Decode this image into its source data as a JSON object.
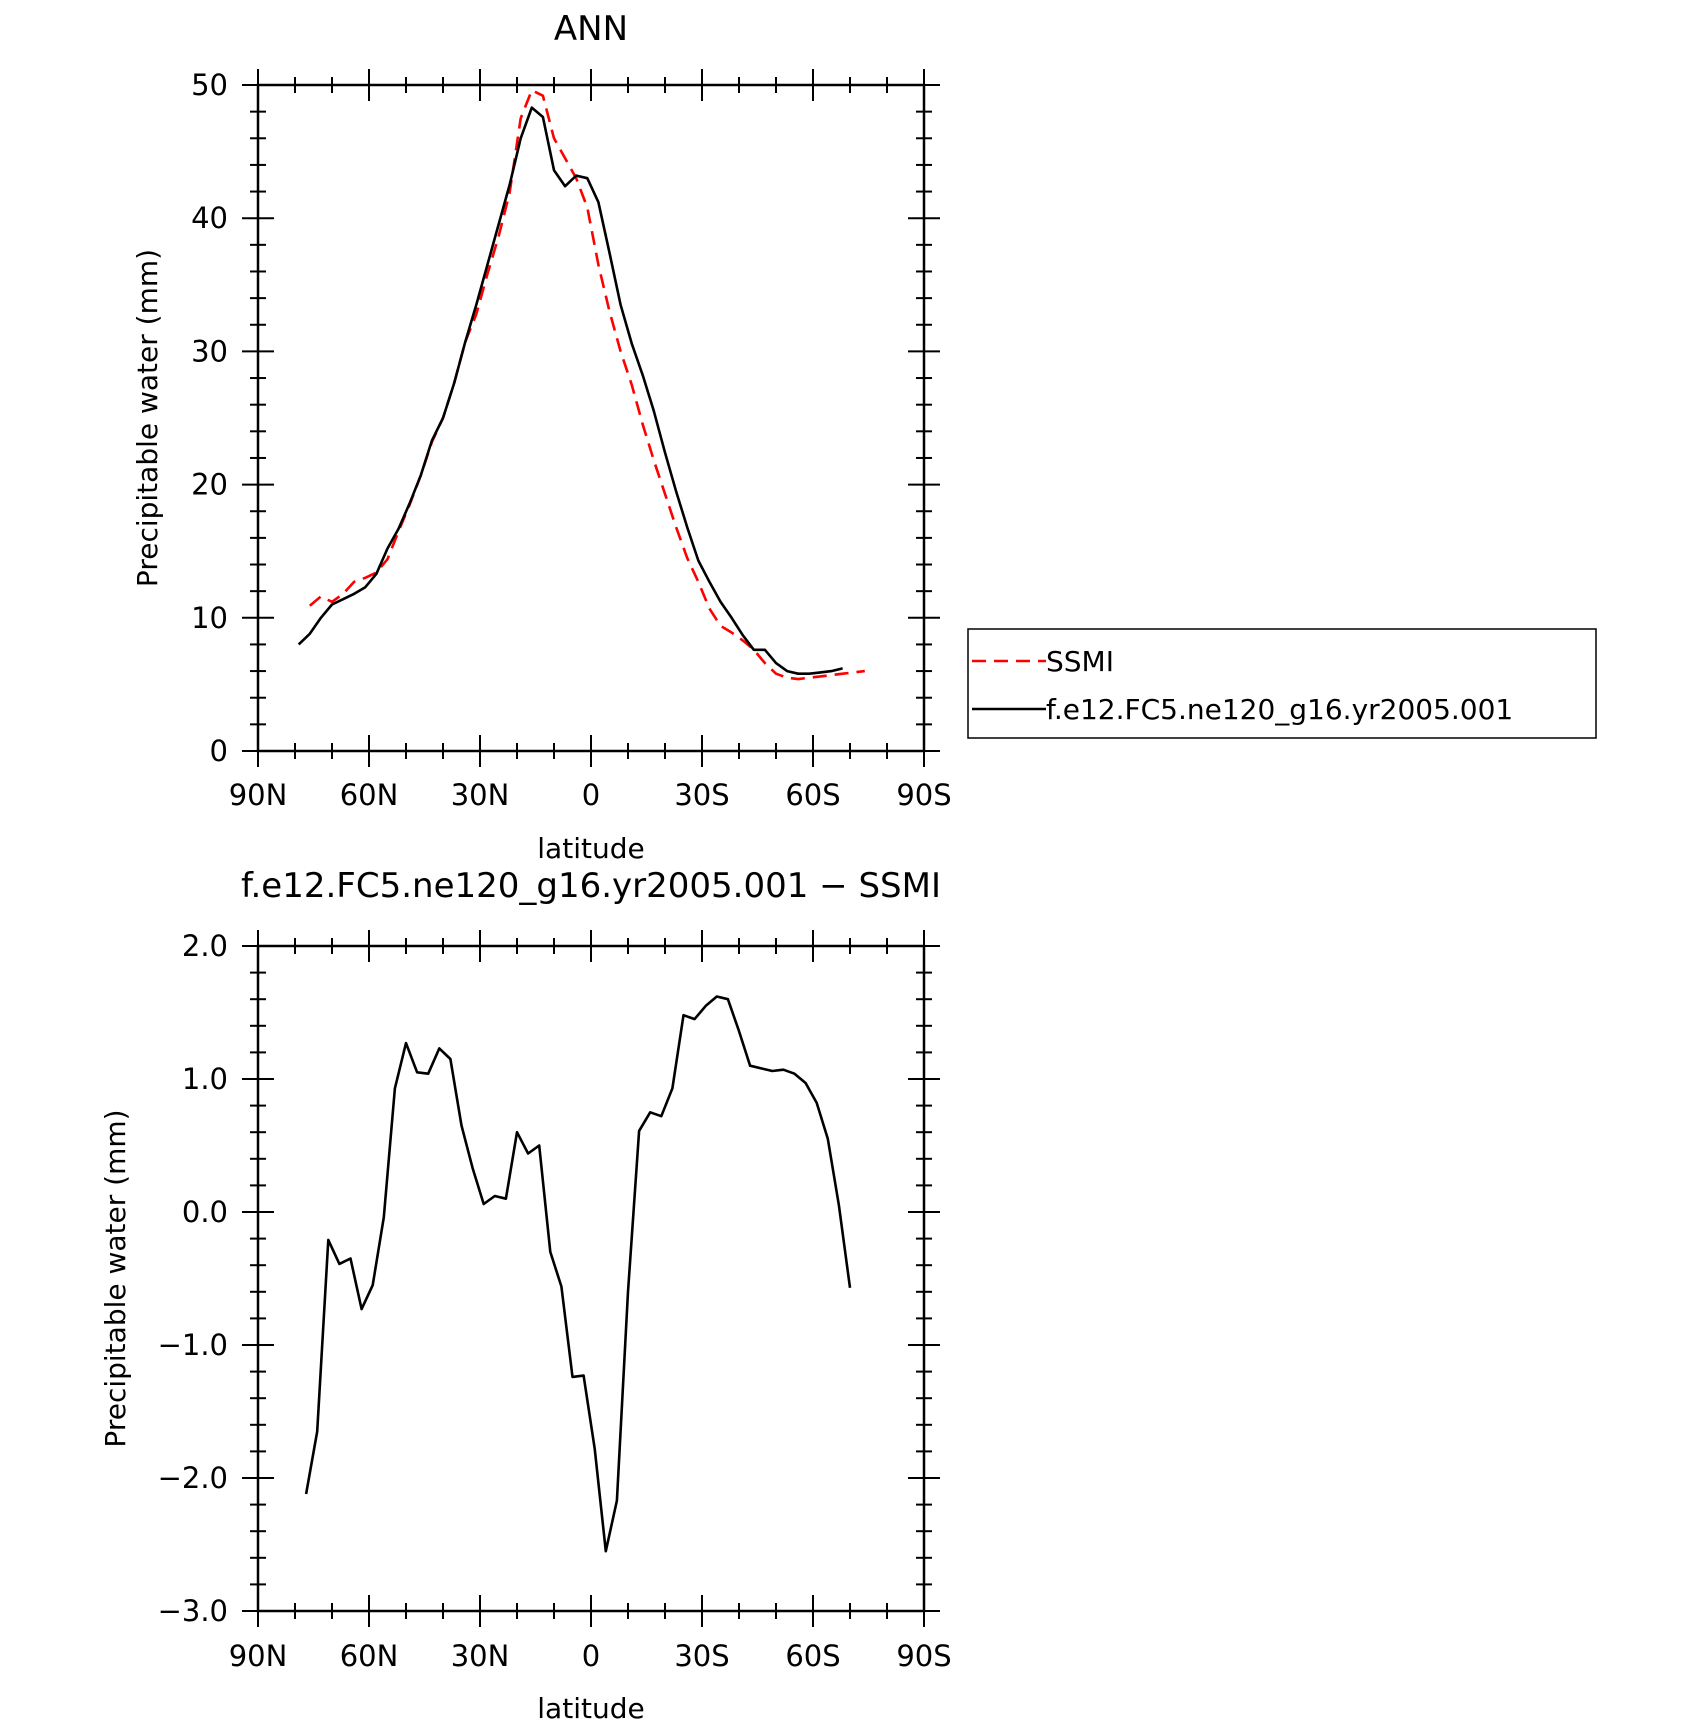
{
  "chart_data": [
    {
      "type": "line",
      "title": "ANN",
      "xlabel": "latitude",
      "ylabel": "Precipitable water (mm)",
      "xlim": [
        90,
        -90
      ],
      "ylim": [
        0,
        50
      ],
      "x_ticks": [
        90,
        60,
        30,
        0,
        -30,
        -60,
        -90
      ],
      "x_tick_labels": [
        "90N",
        "60N",
        "30N",
        "0",
        "30S",
        "60S",
        "90S"
      ],
      "y_ticks": [
        0,
        10,
        20,
        30,
        40,
        50
      ],
      "y_tick_labels": [
        "0",
        "10",
        "20",
        "30",
        "40",
        "50"
      ],
      "grid": false,
      "legend": "right",
      "series": [
        {
          "name": "SSMI",
          "color": "#ff0000",
          "dash": "dashed",
          "x": [
            76,
            73,
            70,
            67,
            64,
            61,
            58,
            55,
            52,
            49,
            46,
            43,
            40,
            37,
            34,
            31,
            28,
            25,
            22,
            19,
            16,
            13,
            10,
            7,
            4,
            1,
            -2,
            -5,
            -8,
            -11,
            -14,
            -17,
            -20,
            -23,
            -26,
            -29,
            -32,
            -35,
            -38,
            -41,
            -44,
            -47,
            -50,
            -53,
            -56,
            -59,
            -62,
            -65,
            -68,
            -71,
            -74
          ],
          "y": [
            10.9,
            11.6,
            11.2,
            11.8,
            12.7,
            13.0,
            13.4,
            14.4,
            16.5,
            18.5,
            20.7,
            23.2,
            25.0,
            27.6,
            30.7,
            32.8,
            35.8,
            38.6,
            41.9,
            47.5,
            49.6,
            49.2,
            46.0,
            44.5,
            43.0,
            40.8,
            36.5,
            33.0,
            30.0,
            27.5,
            24.5,
            21.8,
            19.3,
            16.8,
            14.5,
            12.7,
            10.7,
            9.4,
            8.9,
            8.3,
            7.6,
            6.6,
            5.8,
            5.5,
            5.4,
            5.5,
            5.6,
            5.7,
            5.8,
            5.9,
            6.0
          ]
        },
        {
          "name": "f.e12.FC5.ne120_g16.yr2005.001",
          "color": "#000000",
          "dash": "solid",
          "x": [
            79,
            76,
            73,
            70,
            67,
            64,
            61,
            58,
            55,
            52,
            49,
            46,
            43,
            40,
            37,
            34,
            31,
            28,
            25,
            22,
            19,
            16,
            13,
            10,
            7,
            4,
            1,
            -2,
            -5,
            -8,
            -11,
            -14,
            -17,
            -20,
            -23,
            -26,
            -29,
            -32,
            -35,
            -38,
            -41,
            -44,
            -47,
            -50,
            -53,
            -56,
            -59,
            -62,
            -65,
            -68
          ],
          "y": [
            8.0,
            8.8,
            10.0,
            11.0,
            11.4,
            11.8,
            12.3,
            13.3,
            15.2,
            16.7,
            18.6,
            20.7,
            23.3,
            25.0,
            27.6,
            30.7,
            33.5,
            36.5,
            39.5,
            42.5,
            46.0,
            48.3,
            47.6,
            43.6,
            42.4,
            43.2,
            43.0,
            41.2,
            37.4,
            33.5,
            30.6,
            28.2,
            25.5,
            22.4,
            19.5,
            16.8,
            14.3,
            12.7,
            11.2,
            10.0,
            8.7,
            7.6,
            7.6,
            6.6,
            6.0,
            5.8,
            5.8,
            5.9,
            6.0,
            6.2
          ]
        }
      ]
    },
    {
      "type": "line",
      "title": "f.e12.FC5.ne120_g16.yr2005.001 − SSMI",
      "xlabel": "latitude",
      "ylabel": "Precipitable water (mm)",
      "xlim": [
        90,
        -90
      ],
      "ylim": [
        -3.0,
        2.0
      ],
      "x_ticks": [
        90,
        60,
        30,
        0,
        -30,
        -60,
        -90
      ],
      "x_tick_labels": [
        "90N",
        "60N",
        "30N",
        "0",
        "30S",
        "60S",
        "90S"
      ],
      "y_ticks": [
        -3.0,
        -2.0,
        -1.0,
        0.0,
        1.0,
        2.0
      ],
      "y_tick_labels": [
        "−3.0",
        "−2.0",
        "−1.0",
        "0.0",
        "1.0",
        "2.0"
      ],
      "grid": false,
      "series": [
        {
          "color": "#000000",
          "dash": "solid",
          "x": [
            77,
            74,
            71,
            68,
            65,
            62,
            59,
            56,
            53,
            50,
            47,
            44,
            41,
            38,
            35,
            32,
            29,
            26,
            23,
            20,
            17,
            14,
            11,
            8,
            5,
            2,
            -1,
            -4,
            -7,
            -10,
            -13,
            -16,
            -19,
            -22,
            -25,
            -28,
            -31,
            -34,
            -37,
            -40,
            -43,
            -46,
            -49,
            -52,
            -55,
            -58,
            -61,
            -64,
            -67,
            -70
          ],
          "y": [
            -2.12,
            -1.65,
            -0.21,
            -0.39,
            -0.35,
            -0.73,
            -0.55,
            -0.04,
            0.93,
            1.27,
            1.05,
            1.04,
            1.23,
            1.15,
            0.65,
            0.33,
            0.06,
            0.12,
            0.1,
            0.6,
            0.44,
            0.5,
            -0.3,
            -0.56,
            -1.24,
            -1.23,
            -1.78,
            -2.55,
            -2.17,
            -0.6,
            0.61,
            0.75,
            0.72,
            0.93,
            1.48,
            1.45,
            1.55,
            1.62,
            1.6,
            1.36,
            1.1,
            1.08,
            1.06,
            1.07,
            1.04,
            0.97,
            0.82,
            0.55,
            0.05,
            -0.57
          ]
        }
      ]
    }
  ]
}
